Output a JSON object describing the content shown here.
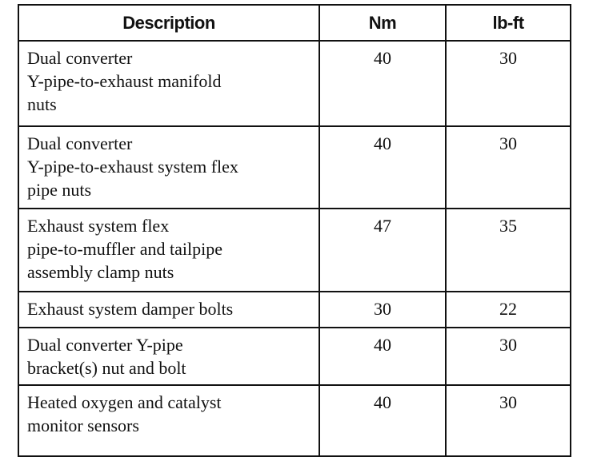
{
  "table": {
    "headers": [
      "Description",
      "Nm",
      "lb-ft"
    ],
    "rows": [
      {
        "description": "Dual converter\nY-pipe-to-exhaust manifold\nnuts",
        "nm": "40",
        "lbft": "30"
      },
      {
        "description": "Dual converter\nY-pipe-to-exhaust system flex\npipe nuts",
        "nm": "40",
        "lbft": "30"
      },
      {
        "description": "Exhaust system flex\npipe-to-muffler and tailpipe\nassembly clamp nuts",
        "nm": "47",
        "lbft": "35"
      },
      {
        "description": "Exhaust system damper bolts",
        "nm": "30",
        "lbft": "22"
      },
      {
        "description": "Dual converter Y-pipe\nbracket(s) nut and bolt",
        "nm": "40",
        "lbft": "30"
      },
      {
        "description": "Heated oxygen and catalyst\nmonitor sensors",
        "nm": "40",
        "lbft": "30"
      }
    ]
  }
}
